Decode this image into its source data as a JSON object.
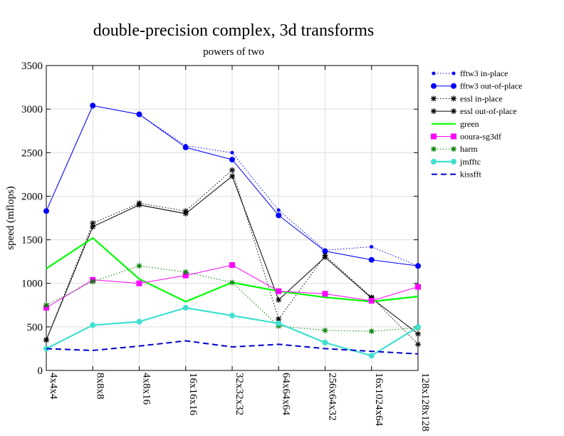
{
  "chart_data": {
    "type": "line",
    "title": "double-precision complex, 3d transforms",
    "subtitle": "powers of two",
    "xlabel": "",
    "ylabel": "speed (mflops)",
    "ylim": [
      0,
      3500
    ],
    "yticks": [
      0,
      500,
      1000,
      1500,
      2000,
      2500,
      3000,
      3500
    ],
    "grid": true,
    "legend_position": "right, outside plot",
    "categories": [
      "4x4x4",
      "8x8x8",
      "4x8x16",
      "16x16x16",
      "32x32x32",
      "64x64x64",
      "256x64x32",
      "16x1024x64",
      "128x128x128"
    ],
    "series": [
      {
        "name": "fftw3 in-place",
        "color": "#0000ff",
        "line": "dotted",
        "marker": "smalldot",
        "values": [
          1830,
          3040,
          2940,
          2580,
          2500,
          1840,
          1380,
          1420,
          1200
        ]
      },
      {
        "name": "fftw3 out-of-place",
        "color": "#0000ff",
        "line": "solid",
        "marker": "dot",
        "values": [
          1830,
          3040,
          2940,
          2560,
          2420,
          1780,
          1370,
          1270,
          1200
        ]
      },
      {
        "name": "essl in-place",
        "color": "#000000",
        "line": "dotted",
        "marker": "star",
        "values": [
          350,
          1690,
          1920,
          1830,
          2300,
          590,
          1320,
          840,
          300
        ]
      },
      {
        "name": "essl out-of-place",
        "color": "#000000",
        "line": "solid",
        "marker": "star",
        "values": [
          350,
          1650,
          1900,
          1800,
          2230,
          810,
          1300,
          830,
          420
        ]
      },
      {
        "name": "green",
        "color": "#00ff00",
        "line": "thick",
        "marker": "none",
        "values": [
          1170,
          1520,
          1050,
          790,
          1010,
          910,
          840,
          790,
          850
        ]
      },
      {
        "name": "ooura-sg3df",
        "color": "#ff00ff",
        "line": "solid",
        "marker": "square",
        "values": [
          720,
          1040,
          1000,
          1090,
          1210,
          910,
          880,
          800,
          960
        ]
      },
      {
        "name": "harm",
        "color": "#008000",
        "line": "dotted",
        "marker": "star",
        "values": [
          750,
          1020,
          1200,
          1130,
          1010,
          510,
          460,
          450,
          490
        ]
      },
      {
        "name": "jmfftc",
        "color": "#40e0d0",
        "line": "thick",
        "marker": "dot",
        "values": [
          250,
          520,
          560,
          720,
          630,
          540,
          320,
          170,
          500
        ]
      },
      {
        "name": "kissfft",
        "color": "#0000cc",
        "line": "dashed",
        "marker": "none",
        "values": [
          250,
          230,
          280,
          340,
          270,
          300,
          250,
          220,
          190
        ]
      }
    ]
  }
}
